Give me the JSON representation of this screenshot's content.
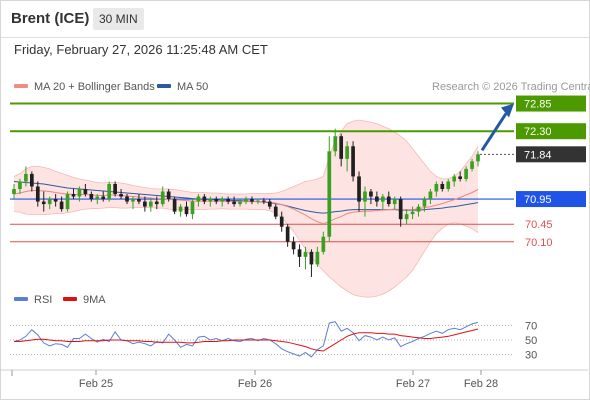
{
  "header": {
    "instrument": "Brent (ICE)",
    "timeframe": "30 MIN"
  },
  "timestamp": "Friday, February 27, 2026 11:25:48 AM CET",
  "legend": {
    "ma20": {
      "label": "MA 20 + Bollinger Bands",
      "color": "#f28b82"
    },
    "ma50": {
      "label": "MA 50",
      "color": "#2c5aa0"
    },
    "credit": "Research © 2026 Trading Central",
    "rsi": {
      "label": "RSI",
      "color": "#5b7fd6"
    },
    "rsi_ma": {
      "label": "9MA",
      "color": "#e01010"
    }
  },
  "levels": [
    {
      "value": 72.85,
      "label": "72.85",
      "kind": "resistance",
      "color": "#4c9a00"
    },
    {
      "value": 72.3,
      "label": "72.30",
      "kind": "resistance",
      "color": "#4c9a00"
    },
    {
      "value": 71.84,
      "label": "71.84",
      "kind": "last",
      "color": "#333333"
    },
    {
      "value": 70.95,
      "label": "70.95",
      "kind": "pivot",
      "color": "#1f54e6"
    },
    {
      "value": 70.45,
      "label": "70.45",
      "kind": "support",
      "color": "#e05050"
    },
    {
      "value": 70.1,
      "label": "70.10",
      "kind": "support",
      "color": "#e05050"
    }
  ],
  "chart_data": [
    {
      "type": "candlestick",
      "x_labels": [
        "Feb 25",
        "Feb 26",
        "Feb 27",
        "Feb 28"
      ],
      "last": 71.84,
      "ohlc": [
        [
          71.05,
          71.25,
          70.95,
          71.15
        ],
        [
          71.15,
          71.35,
          71.05,
          71.3
        ],
        [
          71.3,
          71.6,
          71.2,
          71.45
        ],
        [
          71.45,
          71.5,
          71.1,
          71.2
        ],
        [
          71.2,
          71.3,
          70.8,
          70.9
        ],
        [
          70.9,
          71.1,
          70.7,
          70.85
        ],
        [
          70.85,
          71.0,
          70.75,
          70.95
        ],
        [
          70.95,
          71.05,
          70.8,
          70.9
        ],
        [
          70.9,
          71.0,
          70.7,
          70.75
        ],
        [
          70.75,
          71.1,
          70.7,
          71.05
        ],
        [
          71.05,
          71.15,
          70.95,
          71.0
        ],
        [
          71.0,
          71.2,
          70.9,
          71.15
        ],
        [
          71.15,
          71.25,
          71.0,
          71.05
        ],
        [
          71.05,
          71.1,
          70.9,
          70.95
        ],
        [
          70.95,
          71.05,
          70.85,
          71.0
        ],
        [
          71.0,
          71.1,
          70.9,
          70.95
        ],
        [
          70.95,
          71.3,
          70.9,
          71.25
        ],
        [
          71.25,
          71.3,
          71.0,
          71.05
        ],
        [
          71.05,
          71.15,
          70.95,
          71.0
        ],
        [
          71.0,
          71.05,
          70.85,
          70.9
        ],
        [
          70.9,
          71.0,
          70.75,
          70.95
        ],
        [
          70.95,
          71.05,
          70.85,
          70.9
        ],
        [
          70.9,
          71.0,
          70.7,
          70.8
        ],
        [
          70.8,
          70.95,
          70.7,
          70.9
        ],
        [
          70.9,
          71.0,
          70.75,
          70.85
        ],
        [
          70.85,
          71.2,
          70.8,
          71.1
        ],
        [
          71.1,
          71.15,
          70.9,
          70.95
        ],
        [
          70.95,
          71.0,
          70.65,
          70.7
        ],
        [
          70.7,
          70.85,
          70.6,
          70.8
        ],
        [
          70.8,
          70.9,
          70.6,
          70.65
        ],
        [
          70.65,
          70.95,
          70.55,
          70.9
        ],
        [
          70.9,
          71.05,
          70.8,
          71.0
        ],
        [
          71.0,
          71.05,
          70.85,
          70.9
        ],
        [
          70.9,
          71.0,
          70.8,
          70.95
        ],
        [
          70.95,
          71.0,
          70.85,
          70.9
        ],
        [
          70.9,
          71.0,
          70.8,
          70.95
        ],
        [
          70.95,
          71.0,
          70.85,
          70.9
        ],
        [
          70.9,
          71.0,
          70.8,
          70.85
        ],
        [
          70.85,
          70.95,
          70.8,
          70.9
        ],
        [
          70.9,
          71.0,
          70.85,
          70.95
        ],
        [
          70.95,
          71.0,
          70.85,
          70.9
        ],
        [
          70.9,
          70.95,
          70.85,
          70.92
        ],
        [
          70.92,
          70.97,
          70.85,
          70.9
        ],
        [
          70.9,
          70.95,
          70.75,
          70.8
        ],
        [
          70.8,
          70.85,
          70.55,
          70.6
        ],
        [
          70.6,
          70.7,
          70.3,
          70.4
        ],
        [
          70.4,
          70.45,
          70.0,
          70.1
        ],
        [
          70.1,
          70.2,
          69.85,
          69.95
        ],
        [
          69.95,
          70.05,
          69.6,
          69.8
        ],
        [
          69.8,
          70.0,
          69.55,
          69.9
        ],
        [
          69.9,
          69.95,
          69.4,
          69.65
        ],
        [
          69.65,
          70.0,
          69.6,
          69.9
        ],
        [
          69.9,
          70.3,
          69.85,
          70.2
        ],
        [
          70.2,
          72.2,
          70.1,
          71.9
        ],
        [
          71.9,
          72.35,
          71.8,
          72.2
        ],
        [
          72.2,
          72.25,
          71.6,
          71.75
        ],
        [
          71.75,
          72.1,
          71.5,
          72.0
        ],
        [
          72.0,
          72.1,
          71.3,
          71.4
        ],
        [
          71.4,
          71.5,
          70.7,
          70.9
        ],
        [
          70.9,
          71.2,
          70.6,
          71.1
        ],
        [
          71.1,
          71.15,
          70.85,
          71.0
        ],
        [
          71.0,
          71.1,
          70.8,
          70.9
        ],
        [
          70.9,
          71.05,
          70.75,
          71.0
        ],
        [
          71.0,
          71.1,
          70.8,
          70.85
        ],
        [
          70.85,
          71.0,
          70.75,
          70.95
        ],
        [
          70.95,
          71.0,
          70.4,
          70.55
        ],
        [
          70.55,
          70.75,
          70.45,
          70.65
        ],
        [
          70.65,
          70.8,
          70.55,
          70.7
        ],
        [
          70.7,
          70.85,
          70.6,
          70.8
        ],
        [
          70.8,
          71.0,
          70.7,
          70.95
        ],
        [
          70.95,
          71.15,
          70.85,
          71.1
        ],
        [
          71.1,
          71.3,
          71.0,
          71.25
        ],
        [
          71.25,
          71.3,
          71.1,
          71.15
        ],
        [
          71.15,
          71.35,
          71.1,
          71.3
        ],
        [
          71.3,
          71.45,
          71.2,
          71.4
        ],
        [
          71.4,
          71.5,
          71.3,
          71.35
        ],
        [
          71.35,
          71.6,
          71.3,
          71.55
        ],
        [
          71.55,
          71.75,
          71.5,
          71.7
        ],
        [
          71.7,
          71.9,
          71.6,
          71.84
        ]
      ],
      "ma20": [
        71.05,
        71.07,
        71.1,
        71.12,
        71.12,
        71.11,
        71.1,
        71.08,
        71.06,
        71.05,
        71.04,
        71.04,
        71.04,
        71.03,
        71.02,
        71.02,
        71.03,
        71.03,
        71.02,
        71.01,
        71.0,
        70.99,
        70.98,
        70.97,
        70.96,
        70.96,
        70.95,
        70.94,
        70.93,
        70.92,
        70.91,
        70.91,
        70.91,
        70.91,
        70.91,
        70.91,
        70.9,
        70.9,
        70.9,
        70.9,
        70.9,
        70.9,
        70.9,
        70.89,
        70.87,
        70.84,
        70.8,
        70.75,
        70.69,
        70.63,
        70.56,
        70.5,
        70.46,
        70.5,
        70.56,
        70.6,
        70.66,
        70.69,
        70.7,
        70.71,
        70.71,
        70.72,
        70.73,
        70.74,
        70.75,
        70.74,
        70.74,
        70.74,
        70.76,
        70.78,
        70.8,
        70.83,
        70.86,
        70.9,
        70.94,
        70.98,
        71.03,
        71.08,
        71.14
      ],
      "bb_upper": [
        71.4,
        71.45,
        71.55,
        71.6,
        71.6,
        71.58,
        71.55,
        71.5,
        71.46,
        71.42,
        71.38,
        71.35,
        71.33,
        71.3,
        71.28,
        71.27,
        71.28,
        71.28,
        71.27,
        71.25,
        71.22,
        71.2,
        71.18,
        71.16,
        71.15,
        71.15,
        71.15,
        71.14,
        71.12,
        71.1,
        71.08,
        71.08,
        71.08,
        71.07,
        71.07,
        71.06,
        71.05,
        71.05,
        71.05,
        71.05,
        71.06,
        71.06,
        71.06,
        71.06,
        71.07,
        71.1,
        71.15,
        71.2,
        71.25,
        71.3,
        71.32,
        71.35,
        71.4,
        71.8,
        72.1,
        72.3,
        72.45,
        72.5,
        72.52,
        72.5,
        72.48,
        72.45,
        72.4,
        72.35,
        72.28,
        72.2,
        72.1,
        71.95,
        71.8,
        71.65,
        71.5,
        71.4,
        71.35,
        71.35,
        71.4,
        71.5,
        71.65,
        71.8,
        72.0
      ],
      "bb_lower": [
        70.7,
        70.69,
        70.65,
        70.64,
        70.64,
        70.64,
        70.65,
        70.66,
        70.66,
        70.68,
        70.7,
        70.73,
        70.75,
        70.76,
        70.76,
        70.77,
        70.78,
        70.78,
        70.77,
        70.77,
        70.78,
        70.78,
        70.78,
        70.78,
        70.77,
        70.77,
        70.75,
        70.74,
        70.74,
        70.74,
        70.74,
        70.74,
        70.74,
        70.75,
        70.75,
        70.76,
        70.75,
        70.75,
        70.75,
        70.75,
        70.74,
        70.74,
        70.74,
        70.72,
        70.67,
        70.58,
        70.45,
        70.3,
        70.13,
        69.96,
        69.8,
        69.65,
        69.52,
        69.4,
        69.3,
        69.2,
        69.12,
        69.05,
        69.02,
        69.0,
        69.0,
        69.02,
        69.06,
        69.12,
        69.2,
        69.3,
        69.4,
        69.53,
        69.72,
        69.91,
        70.1,
        70.26,
        70.37,
        70.45,
        70.48,
        70.46,
        70.41,
        70.36,
        70.28
      ],
      "ma50": [
        71.3,
        71.29,
        71.28,
        71.27,
        71.26,
        71.25,
        71.23,
        71.21,
        71.19,
        71.17,
        71.16,
        71.15,
        71.14,
        71.13,
        71.12,
        71.11,
        71.1,
        71.09,
        71.08,
        71.07,
        71.06,
        71.05,
        71.04,
        71.03,
        71.02,
        71.01,
        71.0,
        70.99,
        70.98,
        70.97,
        70.96,
        70.95,
        70.95,
        70.94,
        70.94,
        70.93,
        70.93,
        70.92,
        70.92,
        70.91,
        70.91,
        70.9,
        70.89,
        70.88,
        70.86,
        70.84,
        70.81,
        70.78,
        70.75,
        70.72,
        70.7,
        70.68,
        70.67,
        70.68,
        70.7,
        70.71,
        70.73,
        70.74,
        70.74,
        70.74,
        70.74,
        70.74,
        70.74,
        70.74,
        70.74,
        70.73,
        70.73,
        70.73,
        70.73,
        70.74,
        70.75,
        70.76,
        70.77,
        70.79,
        70.8,
        70.82,
        70.84,
        70.86,
        70.88
      ],
      "y_range": [
        69.3,
        73.0
      ]
    },
    {
      "type": "line",
      "title": "RSI",
      "y_ticks": [
        70,
        50,
        30
      ],
      "y_range": [
        20,
        80
      ],
      "rsi": [
        48,
        50,
        55,
        64,
        57,
        46,
        42,
        45,
        44,
        40,
        52,
        52,
        58,
        52,
        47,
        51,
        48,
        61,
        50,
        49,
        45,
        47,
        45,
        42,
        48,
        46,
        58,
        50,
        40,
        44,
        42,
        54,
        55,
        50,
        52,
        49,
        52,
        49,
        48,
        51,
        52,
        49,
        52,
        50,
        45,
        38,
        34,
        31,
        28,
        33,
        27,
        37,
        42,
        73,
        75,
        62,
        66,
        60,
        49,
        56,
        54,
        50,
        54,
        50,
        53,
        41,
        45,
        48,
        52,
        55,
        59,
        62,
        59,
        64,
        66,
        64,
        68,
        72,
        74
      ],
      "rsi_ma": [
        48,
        48,
        49,
        50,
        51,
        51,
        50,
        49,
        49,
        48,
        48,
        48,
        49,
        49,
        49,
        49,
        50,
        50,
        50,
        49,
        49,
        49,
        48,
        48,
        47,
        47,
        47,
        47,
        47,
        46,
        46,
        47,
        48,
        48,
        48,
        49,
        49,
        50,
        50,
        50,
        50,
        50,
        50,
        50,
        49,
        48,
        47,
        45,
        43,
        41,
        38,
        36,
        35,
        40,
        45,
        50,
        55,
        58,
        60,
        60,
        60,
        59,
        59,
        58,
        58,
        56,
        55,
        54,
        53,
        52,
        52,
        53,
        54,
        55,
        57,
        59,
        61,
        63,
        65
      ]
    }
  ]
}
